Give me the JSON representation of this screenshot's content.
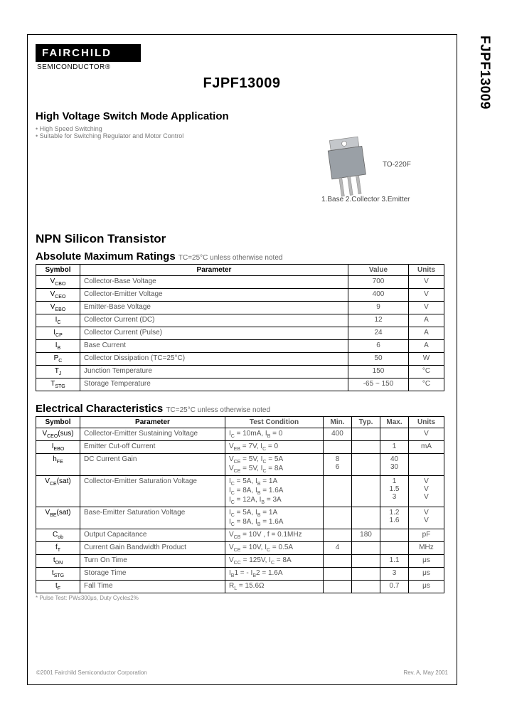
{
  "sidebar": "FJPF13009",
  "logo": {
    "brand": "FAIRCHILD",
    "sub": "SEMICONDUCTOR®"
  },
  "title": "FJPF13009",
  "application": {
    "heading": "High Voltage Switch Mode Application",
    "bullets": [
      "High Speed Switching",
      "Suitable for Switching Regulator and Motor Control"
    ]
  },
  "package": {
    "type": "TO-220F",
    "pins": "1.Base   2.Collector   3.Emitter",
    "body_color": "#9aa0a6",
    "tab_color": "#c4c7cb",
    "lead_color": "#b8b8b8"
  },
  "section1": "NPN Silicon Transistor",
  "amr": {
    "heading": "Absolute Maximum Ratings",
    "cond": "TC=25°C unless otherwise noted",
    "columns": [
      "Symbol",
      "Parameter",
      "Value",
      "Units"
    ],
    "rows": [
      {
        "sym": "VCBO",
        "param": "Collector-Base Voltage",
        "val": "700",
        "unit": "V"
      },
      {
        "sym": "VCEO",
        "param": "Collector-Emitter Voltage",
        "val": "400",
        "unit": "V"
      },
      {
        "sym": "VEBO",
        "param": "Emitter-Base Voltage",
        "val": "9",
        "unit": "V"
      },
      {
        "sym": "IC",
        "param": "Collector Current (DC)",
        "val": "12",
        "unit": "A"
      },
      {
        "sym": "ICP",
        "param": "Collector Current (Pulse)",
        "val": "24",
        "unit": "A"
      },
      {
        "sym": "IB",
        "param": "Base Current",
        "val": "6",
        "unit": "A"
      },
      {
        "sym": "PC",
        "param": "Collector Dissipation (TC=25°C)",
        "val": "50",
        "unit": "W"
      },
      {
        "sym": "TJ",
        "param": "Junction Temperature",
        "val": "150",
        "unit": "°C"
      },
      {
        "sym": "TSTG",
        "param": "Storage Temperature",
        "val": "-65 ~ 150",
        "unit": "°C"
      }
    ]
  },
  "elec": {
    "heading": "Electrical Characteristics",
    "cond": "TC=25°C unless otherwise noted",
    "columns": [
      "Symbol",
      "Parameter",
      "Test Condition",
      "Min.",
      "Typ.",
      "Max.",
      "Units"
    ],
    "rows": [
      {
        "sym": "VCEO(sus)",
        "param": "Collector-Emitter Sustaining Voltage",
        "test": "IC = 10mA, IB = 0",
        "min": "400",
        "typ": "",
        "max": "",
        "unit": "V"
      },
      {
        "sym": "IEBO",
        "param": "Emitter Cut-off Current",
        "test": "VEB = 7V, IC = 0",
        "min": "",
        "typ": "",
        "max": "1",
        "unit": "mA"
      },
      {
        "sym": "hFE",
        "param": "DC Current Gain",
        "test": "VCE = 5V, IC = 5A\nVCE = 5V, IC = 8A",
        "min": "8\n6",
        "typ": "",
        "max": "40\n30",
        "unit": ""
      },
      {
        "sym": "VCE(sat)",
        "param": "Collector-Emitter Saturation Voltage",
        "test": "IC = 5A, IB = 1A\nIC = 8A, IB = 1.6A\nIC = 12A, IB = 3A",
        "min": "",
        "typ": "",
        "max": "1\n1.5\n3",
        "unit": "V\nV\nV"
      },
      {
        "sym": "VBE(sat)",
        "param": "Base-Emitter Saturation Voltage",
        "test": "IC = 5A, IB = 1A\nIC = 8A, IB = 1.6A",
        "min": "",
        "typ": "",
        "max": "1.2\n1.6",
        "unit": "V\nV"
      },
      {
        "sym": "Cob",
        "param": "Output Capacitance",
        "test": "VCB = 10V , f = 0.1MHz",
        "min": "",
        "typ": "180",
        "max": "",
        "unit": "pF"
      },
      {
        "sym": "fT",
        "param": "Current Gain Bandwidth Product",
        "test": "VCE = 10V, IC = 0.5A",
        "min": "4",
        "typ": "",
        "max": "",
        "unit": "MHz"
      },
      {
        "sym": "tON",
        "param": "Turn On Time",
        "test": "VCC = 125V, IC = 8A",
        "min": "",
        "typ": "",
        "max": "1.1",
        "unit": "μs"
      },
      {
        "sym": "tSTG",
        "param": "Storage Time",
        "test": "IB1 = - IB2 = 1.6A",
        "min": "",
        "typ": "",
        "max": "3",
        "unit": "μs"
      },
      {
        "sym": "tF",
        "param": "Fall Time",
        "test": "RL = 15.6Ω",
        "min": "",
        "typ": "",
        "max": "0.7",
        "unit": "μs"
      }
    ],
    "footnote": "* Pulse Test: PW≤300μs, Duty Cycle≤2%"
  },
  "footer": {
    "left": "©2001 Fairchild Semiconductor Corporation",
    "right": "Rev. A, May 2001"
  }
}
